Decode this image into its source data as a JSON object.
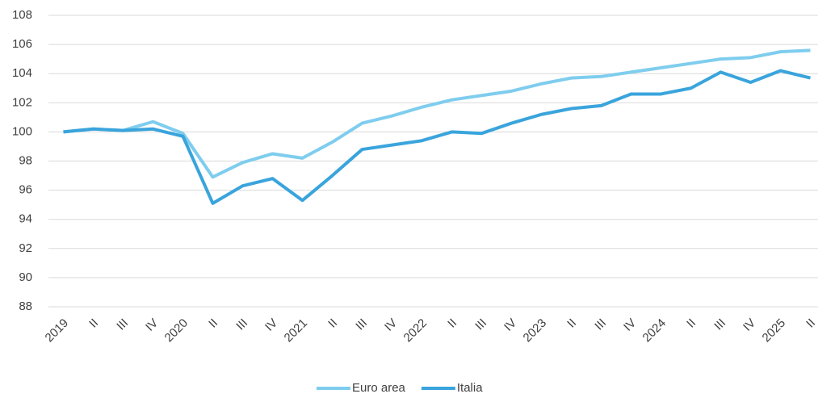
{
  "chart_data": {
    "type": "line",
    "categories": [
      "2019",
      "II",
      "III",
      "IV",
      "2020",
      "II",
      "III",
      "IV",
      "2021",
      "II",
      "III",
      "IV",
      "2022",
      "II",
      "III",
      "IV",
      "2023",
      "II",
      "III",
      "IV",
      "2024",
      "II",
      "III",
      "IV",
      "2025",
      "II"
    ],
    "series": [
      {
        "name": "Euro area",
        "color": "#7fcdee",
        "values": [
          100,
          100.2,
          100.1,
          100.7,
          99.9,
          96.9,
          97.9,
          98.5,
          98.2,
          99.3,
          100.6,
          101.1,
          101.7,
          102.2,
          102.5,
          102.8,
          103.3,
          103.7,
          103.8,
          104.1,
          104.4,
          104.7,
          105.0,
          105.1,
          105.5,
          105.6
        ]
      },
      {
        "name": "Italia",
        "color": "#3aa4dc",
        "values": [
          100,
          100.2,
          100.1,
          100.2,
          99.7,
          95.1,
          96.3,
          96.8,
          95.3,
          97.0,
          98.8,
          99.1,
          99.4,
          100.0,
          99.9,
          100.6,
          101.2,
          101.6,
          101.8,
          102.6,
          102.6,
          103.0,
          104.1,
          103.4,
          104.2,
          103.7
        ]
      }
    ],
    "ylim": [
      88,
      108
    ],
    "yticks": [
      88,
      90,
      92,
      94,
      96,
      98,
      100,
      102,
      104,
      106,
      108
    ],
    "grid": true,
    "legend": "bottom"
  }
}
